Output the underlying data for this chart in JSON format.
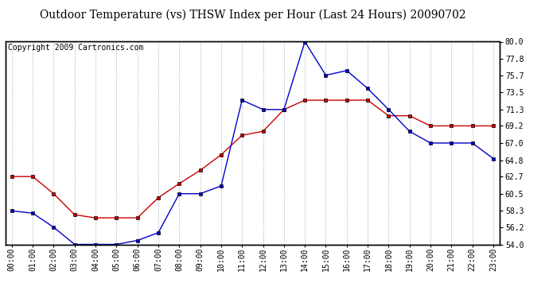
{
  "title": "Outdoor Temperature (vs) THSW Index per Hour (Last 24 Hours) 20090702",
  "copyright": "Copyright 2009 Cartronics.com",
  "hours": [
    "00:00",
    "01:00",
    "02:00",
    "03:00",
    "04:00",
    "05:00",
    "06:00",
    "07:00",
    "08:00",
    "09:00",
    "10:00",
    "11:00",
    "12:00",
    "13:00",
    "14:00",
    "15:00",
    "16:00",
    "17:00",
    "18:00",
    "19:00",
    "20:00",
    "21:00",
    "22:00",
    "23:00"
  ],
  "temp_red": [
    62.7,
    62.7,
    60.5,
    57.8,
    57.4,
    57.4,
    57.4,
    60.0,
    61.8,
    63.5,
    65.5,
    68.0,
    68.5,
    71.3,
    72.5,
    72.5,
    72.5,
    72.5,
    70.5,
    70.5,
    69.2,
    69.2,
    69.2,
    69.2
  ],
  "thsw_blue": [
    58.3,
    58.0,
    56.2,
    54.0,
    54.0,
    54.0,
    54.5,
    55.5,
    60.5,
    60.5,
    61.5,
    72.5,
    71.3,
    71.3,
    80.0,
    75.7,
    76.3,
    74.0,
    71.3,
    68.5,
    67.0,
    67.0,
    67.0,
    65.0
  ],
  "ylim": [
    54.0,
    80.0
  ],
  "yticks": [
    54.0,
    56.2,
    58.3,
    60.5,
    62.7,
    64.8,
    67.0,
    69.2,
    71.3,
    73.5,
    75.7,
    77.8,
    80.0
  ],
  "temp_color": "#cc0000",
  "thsw_color": "#0000cc",
  "grid_color": "#bbbbcc",
  "bg_color": "#ffffff",
  "plot_bg": "#e8e8f0",
  "title_fontsize": 10,
  "copyright_fontsize": 7,
  "tick_fontsize": 7,
  "marker": "s",
  "markersize": 3
}
